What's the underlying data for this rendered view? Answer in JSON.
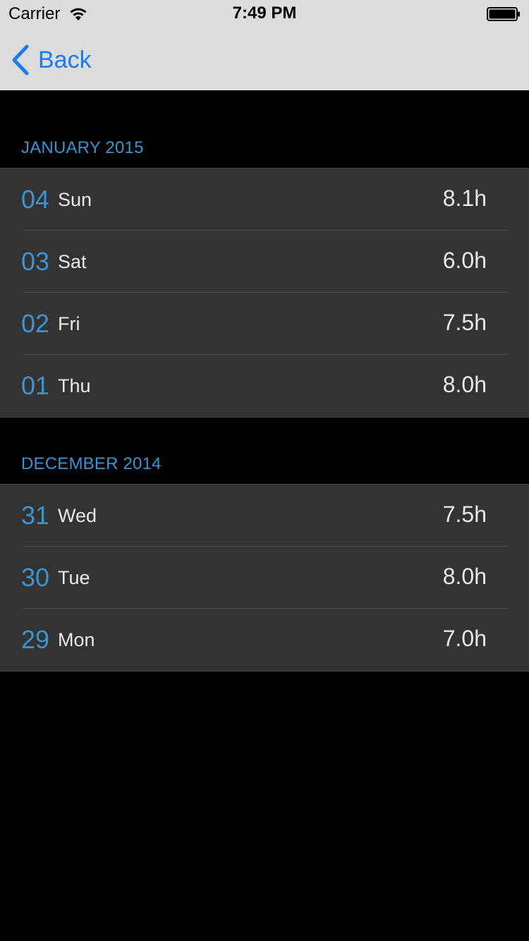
{
  "status_bar": {
    "carrier": "Carrier",
    "time": "7:49 PM"
  },
  "nav": {
    "back_label": "Back"
  },
  "colors": {
    "accent": "#3b93d1",
    "nav_tint": "#1a7bf2",
    "cell_bg": "#333333",
    "bg": "#000000"
  },
  "sections": [
    {
      "title": "JANUARY 2015",
      "rows": [
        {
          "day": "04",
          "weekday": "Sun",
          "hours": "8.1h"
        },
        {
          "day": "03",
          "weekday": "Sat",
          "hours": "6.0h"
        },
        {
          "day": "02",
          "weekday": "Fri",
          "hours": "7.5h"
        },
        {
          "day": "01",
          "weekday": "Thu",
          "hours": "8.0h"
        }
      ]
    },
    {
      "title": "DECEMBER 2014",
      "rows": [
        {
          "day": "31",
          "weekday": "Wed",
          "hours": "7.5h"
        },
        {
          "day": "30",
          "weekday": "Tue",
          "hours": "8.0h"
        },
        {
          "day": "29",
          "weekday": "Mon",
          "hours": "7.0h"
        }
      ]
    }
  ]
}
